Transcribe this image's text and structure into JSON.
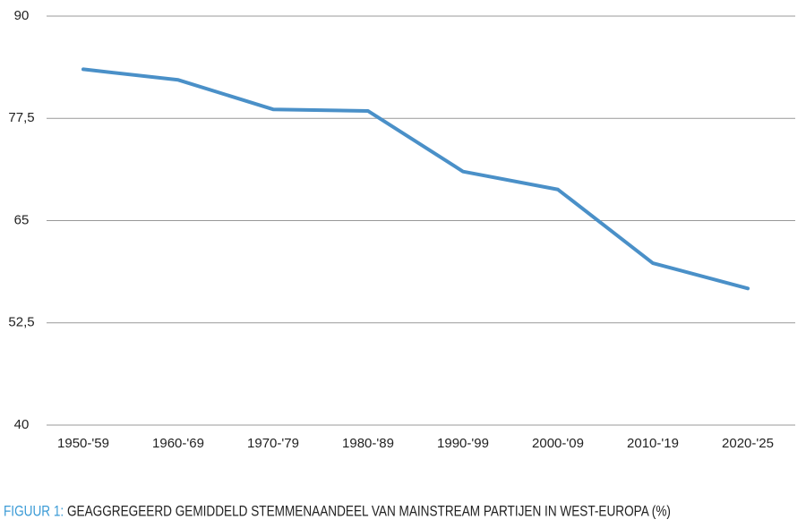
{
  "chart_data": {
    "type": "line",
    "figure_label": "FIGUUR 1:",
    "title": "GEAGGREGEERD GEMIDDELD STEMMENAANDEEL VAN MAINSTREAM PARTIJEN IN WEST-EUROPA (%)",
    "categories": [
      "1950-'59",
      "1960-'69",
      "1970-'79",
      "1980-'89",
      "1990-'99",
      "2000-'09",
      "2010-'19",
      "2020-'25"
    ],
    "series": [
      {
        "color": "#4a90c8",
        "values": [
          83.5,
          82.2,
          78.6,
          78.4,
          71.0,
          68.8,
          59.8,
          56.7
        ]
      }
    ],
    "ylim": [
      40,
      90
    ],
    "yticks": [
      40,
      {
        "value": 52.5,
        "label": "52,5"
      },
      65,
      {
        "value": 77.5,
        "label": "77,5"
      },
      90
    ],
    "grid": true,
    "label_color": "#3b9bd6"
  }
}
